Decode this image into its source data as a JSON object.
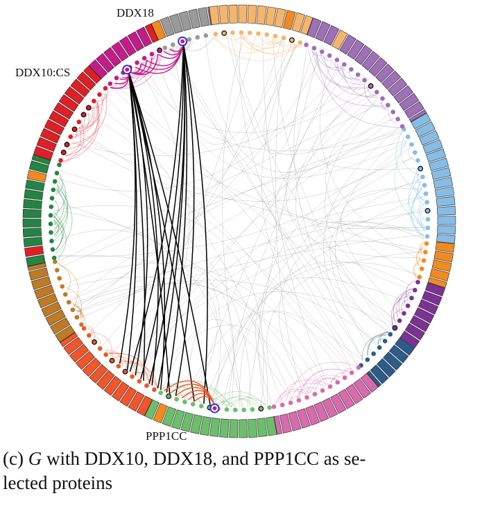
{
  "labels": {
    "ddx18": "DDX18",
    "ddx10": "DDX10:CS",
    "ppp1cc": "PPP1CC"
  },
  "caption": {
    "prefix": "(c)",
    "graph_symbol": "G",
    "line1_rest": "with DDX10, DDX18, and PPP1CC as se-",
    "line2": "lected proteins"
  },
  "colors": {
    "lightblue": "#86bde6",
    "orange": "#f28b1e",
    "darkpurple": "#7b3294",
    "navy": "#2b5c8a",
    "pink": "#d96aae",
    "green": "#6bbf6b",
    "purple": "#9f6fb8",
    "peach": "#f7b56c",
    "grey": "#9a9a9a",
    "magenta": "#c51b8a",
    "red": "#e01e25",
    "darkgreen": "#238443",
    "brown": "#c07a24",
    "redorange": "#f2552a",
    "selected_edge": "#000000",
    "highlight_ring": "#3333cc"
  }
}
